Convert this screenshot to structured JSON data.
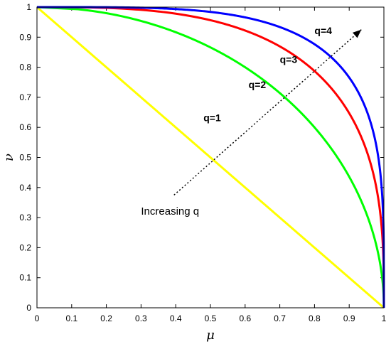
{
  "chart_data": {
    "type": "line",
    "title": "",
    "xlabel": "μ",
    "ylabel": "ν",
    "xlim": [
      0,
      1
    ],
    "ylim": [
      0,
      1
    ],
    "xticks": [
      "0",
      "0.1",
      "0.2",
      "0.3",
      "0.4",
      "0.5",
      "0.6",
      "0.7",
      "0.8",
      "0.9",
      "1"
    ],
    "yticks": [
      "0",
      "0.1",
      "0.2",
      "0.3",
      "0.4",
      "0.5",
      "0.6",
      "0.7",
      "0.8",
      "0.9",
      "1"
    ],
    "grid": false,
    "series": [
      {
        "name": "q=1",
        "q": 1,
        "color": "#ffff00"
      },
      {
        "name": "q=2",
        "q": 2,
        "color": "#00ff00"
      },
      {
        "name": "q=3",
        "q": 3,
        "color": "#ff0000"
      },
      {
        "name": "q=4",
        "q": 4,
        "color": "#0000ff"
      }
    ],
    "curve_labels": [
      {
        "text": "q=1",
        "at": [
          0.48,
          0.62
        ]
      },
      {
        "text": "q=2",
        "at": [
          0.61,
          0.73
        ]
      },
      {
        "text": "q=3",
        "at": [
          0.7,
          0.815
        ]
      },
      {
        "text": "q=4",
        "at": [
          0.8,
          0.91
        ]
      }
    ],
    "annotation": {
      "text": "Increasing q",
      "arrow_from": [
        0.395,
        0.375
      ],
      "arrow_to": [
        0.935,
        0.925
      ],
      "text_at": [
        0.3,
        0.31
      ]
    }
  }
}
